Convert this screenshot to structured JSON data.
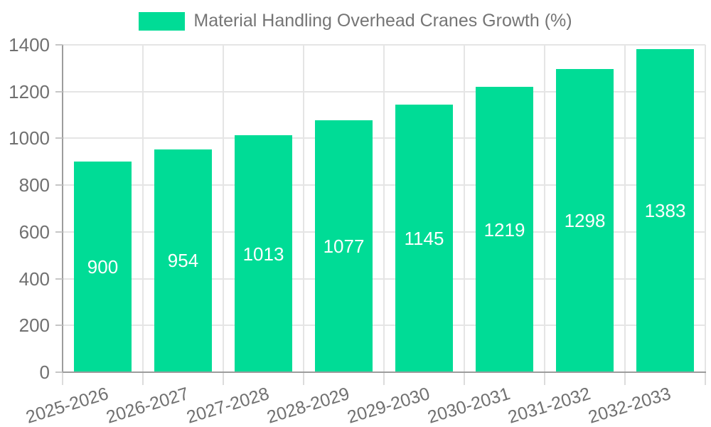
{
  "chart_data": {
    "type": "bar",
    "title": "Material Handling Overhead Cranes Growth (%)",
    "categories": [
      "2025-2026",
      "2026-2027",
      "2027-2028",
      "2028-2029",
      "2029-2030",
      "2030-2031",
      "2031-2032",
      "2032-2033"
    ],
    "values": [
      900,
      954,
      1013,
      1077,
      1145,
      1219,
      1298,
      1383
    ],
    "bar_labels": [
      "900",
      "954",
      "1013",
      "1077",
      "1145",
      "1219",
      "1298",
      "1383"
    ],
    "xlabel": "",
    "ylabel": "",
    "ylim": [
      0,
      1400
    ],
    "yticks": [
      0,
      200,
      400,
      600,
      800,
      1000,
      1200,
      1400
    ],
    "x_tick_rotation_deg": -17,
    "grid": true,
    "legend_position": "top-center",
    "bar_label_position": "inside-center",
    "colors": {
      "bar": "#00DC96",
      "bar_label_text": "#ffffff",
      "legend_text": "#757575",
      "tick_text": "#707070",
      "axis_line": "#9c9c9c",
      "grid_line": "#e5e5e5",
      "background": "#ffffff"
    }
  }
}
